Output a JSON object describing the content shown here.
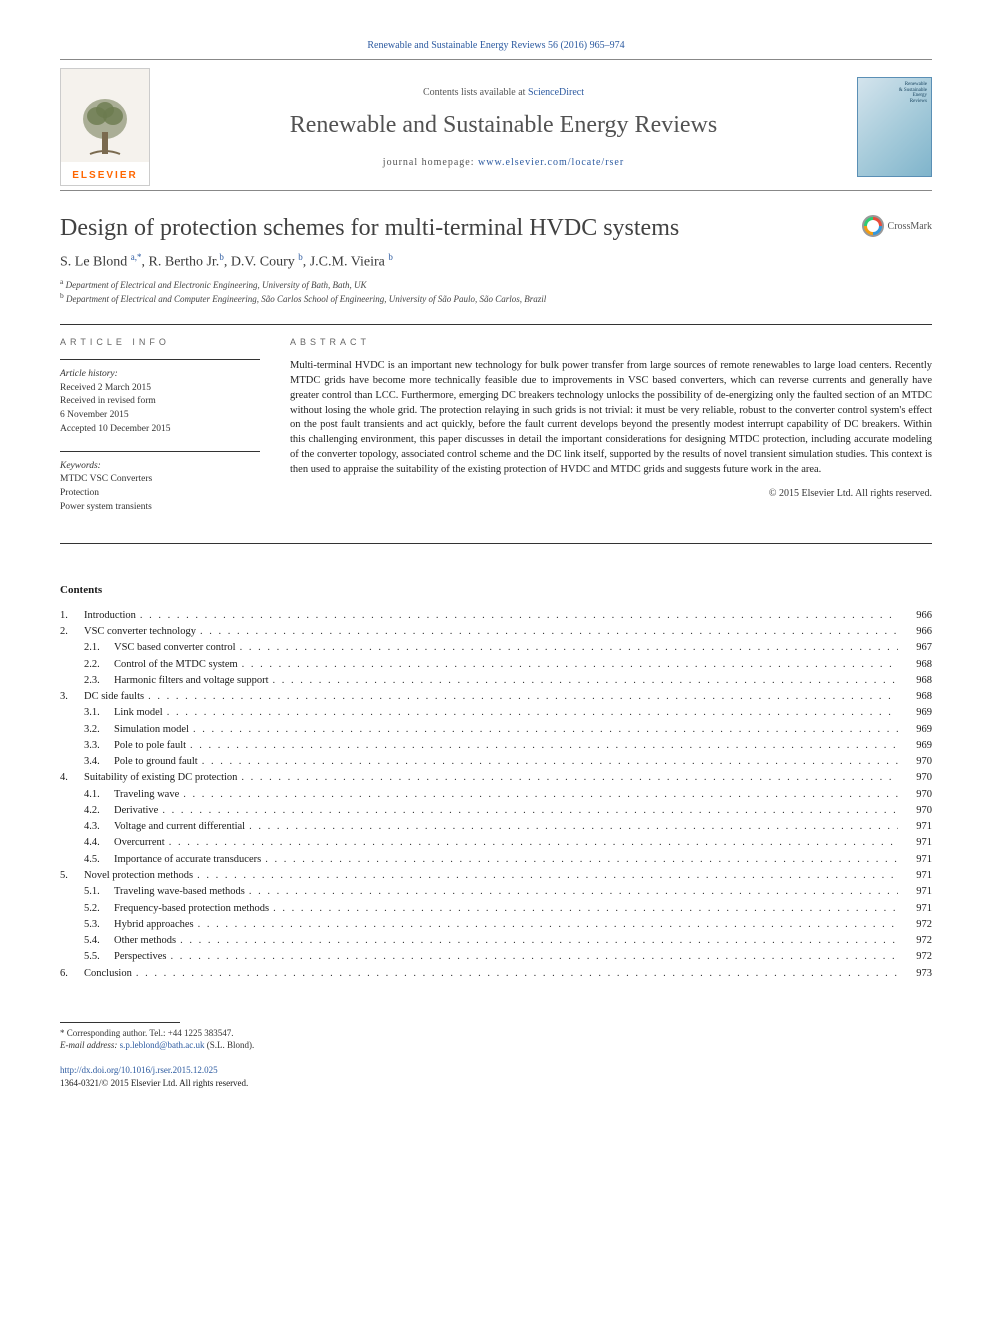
{
  "header": {
    "citation": "Renewable and Sustainable Energy Reviews 56 (2016) 965–974",
    "contentsAt": "Contents lists available at",
    "contentsLink": "ScienceDirect",
    "journalName": "Renewable and Sustainable Energy Reviews",
    "homepageLabel": "journal homepage:",
    "homepageUrl": "www.elsevier.com/locate/rser",
    "publisherName": "ELSEVIER"
  },
  "article": {
    "title": "Design of protection schemes for multi-terminal HVDC systems",
    "crossmarkLabel": "CrossMark",
    "authorsHtml": "S. Le Blond <sup>a,*</sup>, R. Bertho Jr.<sup>b</sup>, D.V. Coury <sup>b</sup>, J.C.M. Vieira <sup>b</sup>",
    "affiliations": [
      {
        "sup": "a",
        "text": "Department of Electrical and Electronic Engineering, University of Bath, Bath, UK"
      },
      {
        "sup": "b",
        "text": "Department of Electrical and Computer Engineering, São Carlos School of Engineering, University of São Paulo, São Carlos, Brazil"
      }
    ]
  },
  "articleInfo": {
    "label": "ARTICLE INFO",
    "history": {
      "label": "Article history:",
      "lines": [
        "Received 2 March 2015",
        "Received in revised form",
        "6 November 2015",
        "Accepted 10 December 2015"
      ]
    },
    "keywords": {
      "label": "Keywords:",
      "items": [
        "MTDC VSC Converters",
        "Protection",
        "Power system transients"
      ]
    }
  },
  "abstract": {
    "label": "ABSTRACT",
    "text": "Multi-terminal HVDC is an important new technology for bulk power transfer from large sources of remote renewables to large load centers. Recently MTDC grids have become more technically feasible due to improvements in VSC based converters, which can reverse currents and generally have greater control than LCC. Furthermore, emerging DC breakers technology unlocks the possibility of de-energizing only the faulted section of an MTDC without losing the whole grid. The protection relaying in such grids is not trivial: it must be very reliable, robust to the converter control system's effect on the post fault transients and act quickly, before the fault current develops beyond the presently modest interrupt capability of DC breakers. Within this challenging environment, this paper discusses in detail the important considerations for designing MTDC protection, including accurate modeling of the converter topology, associated control scheme and the DC link itself, supported by the results of novel transient simulation studies. This context is then used to appraise the suitability of the existing protection of HVDC and MTDC grids and suggests future work in the area.",
    "copyright": "© 2015 Elsevier Ltd. All rights reserved."
  },
  "contents": {
    "heading": "Contents",
    "items": [
      {
        "num": "1.",
        "title": "Introduction",
        "page": "966",
        "level": 1
      },
      {
        "num": "2.",
        "title": "VSC converter technology",
        "page": "966",
        "level": 1
      },
      {
        "num": "2.1.",
        "title": "VSC based converter control",
        "page": "967",
        "level": 2
      },
      {
        "num": "2.2.",
        "title": "Control of the MTDC system",
        "page": "968",
        "level": 2
      },
      {
        "num": "2.3.",
        "title": "Harmonic filters and voltage support",
        "page": "968",
        "level": 2
      },
      {
        "num": "3.",
        "title": "DC side faults",
        "page": "968",
        "level": 1
      },
      {
        "num": "3.1.",
        "title": "Link model",
        "page": "969",
        "level": 2
      },
      {
        "num": "3.2.",
        "title": "Simulation model",
        "page": "969",
        "level": 2
      },
      {
        "num": "3.3.",
        "title": "Pole to pole fault",
        "page": "969",
        "level": 2
      },
      {
        "num": "3.4.",
        "title": "Pole to ground fault",
        "page": "970",
        "level": 2
      },
      {
        "num": "4.",
        "title": "Suitability of existing DC protection",
        "page": "970",
        "level": 1
      },
      {
        "num": "4.1.",
        "title": "Traveling wave",
        "page": "970",
        "level": 2
      },
      {
        "num": "4.2.",
        "title": "Derivative",
        "page": "970",
        "level": 2
      },
      {
        "num": "4.3.",
        "title": "Voltage and current differential",
        "page": "971",
        "level": 2
      },
      {
        "num": "4.4.",
        "title": "Overcurrent",
        "page": "971",
        "level": 2
      },
      {
        "num": "4.5.",
        "title": "Importance of accurate transducers",
        "page": "971",
        "level": 2
      },
      {
        "num": "5.",
        "title": "Novel protection methods",
        "page": "971",
        "level": 1
      },
      {
        "num": "5.1.",
        "title": "Traveling wave-based methods",
        "page": "971",
        "level": 2
      },
      {
        "num": "5.2.",
        "title": "Frequency-based protection methods",
        "page": "971",
        "level": 2
      },
      {
        "num": "5.3.",
        "title": "Hybrid approaches",
        "page": "972",
        "level": 2
      },
      {
        "num": "5.4.",
        "title": "Other methods",
        "page": "972",
        "level": 2
      },
      {
        "num": "5.5.",
        "title": "Perspectives",
        "page": "972",
        "level": 2
      },
      {
        "num": "6.",
        "title": "Conclusion",
        "page": "973",
        "level": 1
      }
    ]
  },
  "footnotes": {
    "corresponding": "* Corresponding author. Tel.: +44 1225 383547.",
    "emailLabel": "E-mail address:",
    "email": "s.p.leblond@bath.ac.uk",
    "emailSuffix": "(S.L. Blond).",
    "doi": "http://dx.doi.org/10.1016/j.rser.2015.12.025",
    "issn": "1364-0321/© 2015 Elsevier Ltd. All rights reserved."
  },
  "colors": {
    "linkBlue": "#2c5aa0",
    "textGray": "#414141",
    "elsevierOrange": "#ff6600"
  }
}
